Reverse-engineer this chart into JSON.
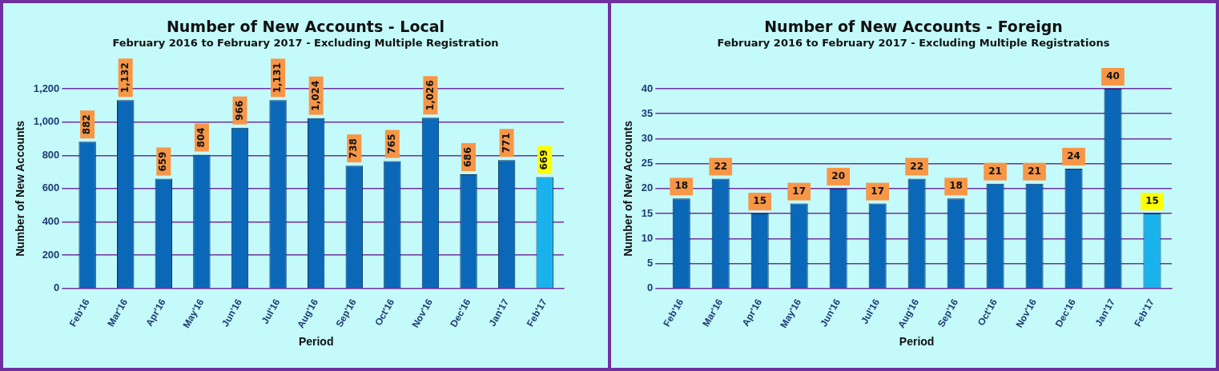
{
  "chart_data": [
    {
      "type": "bar",
      "title": "Number of New Accounts - Local",
      "subtitle": "February 2016 to February 2017 - Excluding Multiple Registration",
      "xlabel": "Period",
      "ylabel": "Number of New Accounts",
      "categories": [
        "Feb'16",
        "Mar'16",
        "Apr'16",
        "May'16",
        "Jun'16",
        "Jul'16",
        "Aug'16",
        "Sep'16",
        "Oct'16",
        "Nov'16",
        "Dec'16",
        "Jan'17",
        "Feb'17"
      ],
      "values": [
        882,
        1132,
        659,
        804,
        966,
        1131,
        1024,
        738,
        765,
        1026,
        686,
        771,
        669
      ],
      "colors": [
        "#0b67b8",
        "#0b67b8",
        "#0b67b8",
        "#0b67b8",
        "#0b67b8",
        "#0b67b8",
        "#0b67b8",
        "#0b67b8",
        "#0b67b8",
        "#0b67b8",
        "#0b67b8",
        "#0b67b8",
        "#1ab2ec"
      ],
      "value_labels": [
        "882",
        "1,132",
        "659",
        "804",
        "966",
        "1,131",
        "1,024",
        "738",
        "765",
        "1,026",
        "686",
        "771",
        "669"
      ],
      "ylim": [
        0,
        1200
      ],
      "yticks": [
        0,
        200,
        400,
        600,
        800,
        {
          "value": 1000,
          "label": "1,000"
        },
        {
          "value": 1200,
          "label": "1,200"
        }
      ],
      "grid": "y"
    },
    {
      "type": "bar",
      "title": "Number of New Accounts - Foreign",
      "subtitle": "February 2016 to February 2017 - Excluding Multiple Registrations",
      "xlabel": "Period",
      "ylabel": "Number of New Accounts",
      "categories": [
        "Feb'16",
        "Mar'16",
        "Apr'16",
        "May'16",
        "Jun'16",
        "Jul'16",
        "Aug'16",
        "Sep'16",
        "Oct'16",
        "Nov'16",
        "Dec'16",
        "Jan'17",
        "Feb'17"
      ],
      "values": [
        18,
        22,
        15,
        17,
        20,
        17,
        22,
        18,
        21,
        21,
        24,
        40,
        15
      ],
      "colors": [
        "#0b67b8",
        "#0b67b8",
        "#0b67b8",
        "#0b67b8",
        "#0b67b8",
        "#0b67b8",
        "#0b67b8",
        "#0b67b8",
        "#0b67b8",
        "#0b67b8",
        "#0b67b8",
        "#0b67b8",
        "#1ab2ec"
      ],
      "ylim": [
        0,
        40
      ],
      "yticks": [
        0,
        5,
        10,
        15,
        20,
        25,
        30,
        35,
        40
      ],
      "grid": "y",
      "data_labels": true
    }
  ]
}
